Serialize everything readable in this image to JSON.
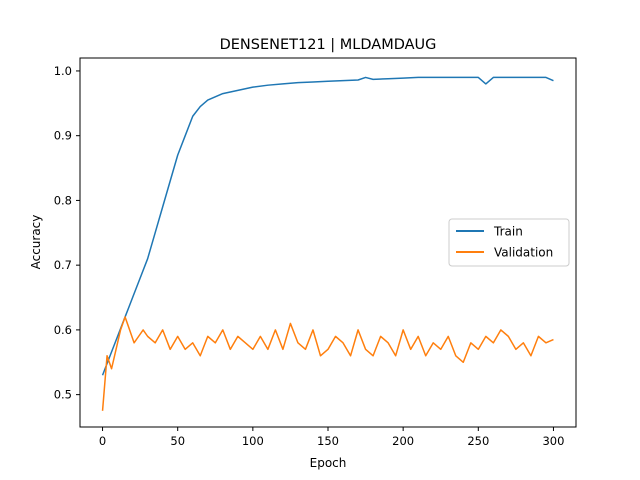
{
  "chart_data": {
    "type": "line",
    "title": "DENSENET121 | MLDAMDAUG",
    "xlabel": "Epoch",
    "ylabel": "Accuracy",
    "xlim": [
      -15,
      315
    ],
    "ylim": [
      0.45,
      1.02
    ],
    "xticks": [
      0,
      50,
      100,
      150,
      200,
      250,
      300
    ],
    "yticks": [
      0.5,
      0.6,
      0.7,
      0.8,
      0.9,
      1.0
    ],
    "ytick_labels": [
      "0.5",
      "0.6",
      "0.7",
      "0.8",
      "0.9",
      "1.0"
    ],
    "grid": false,
    "legend_position": "center-right",
    "series": [
      {
        "name": "Train",
        "color": "#1f77b4",
        "x": [
          0,
          5,
          10,
          15,
          20,
          25,
          30,
          35,
          40,
          45,
          50,
          55,
          60,
          65,
          70,
          75,
          80,
          90,
          100,
          110,
          120,
          130,
          140,
          150,
          160,
          170,
          175,
          180,
          190,
          200,
          210,
          220,
          230,
          240,
          250,
          255,
          260,
          270,
          280,
          290,
          295,
          300
        ],
        "y": [
          0.53,
          0.56,
          0.59,
          0.62,
          0.65,
          0.68,
          0.71,
          0.75,
          0.79,
          0.83,
          0.87,
          0.9,
          0.93,
          0.945,
          0.955,
          0.96,
          0.965,
          0.97,
          0.975,
          0.978,
          0.98,
          0.982,
          0.983,
          0.984,
          0.985,
          0.986,
          0.99,
          0.987,
          0.988,
          0.989,
          0.99,
          0.99,
          0.99,
          0.99,
          0.99,
          0.98,
          0.99,
          0.99,
          0.99,
          0.99,
          0.99,
          0.985
        ]
      },
      {
        "name": "Validation",
        "color": "#ff7f0e",
        "x": [
          0,
          3,
          6,
          9,
          12,
          15,
          18,
          21,
          24,
          27,
          30,
          35,
          40,
          45,
          50,
          55,
          60,
          65,
          70,
          75,
          80,
          85,
          90,
          95,
          100,
          105,
          110,
          115,
          120,
          125,
          130,
          135,
          140,
          145,
          150,
          155,
          160,
          165,
          170,
          175,
          180,
          185,
          190,
          195,
          200,
          205,
          210,
          215,
          220,
          225,
          230,
          235,
          240,
          245,
          250,
          255,
          260,
          265,
          270,
          275,
          280,
          285,
          290,
          295,
          300
        ],
        "y": [
          0.475,
          0.56,
          0.54,
          0.57,
          0.6,
          0.62,
          0.6,
          0.58,
          0.59,
          0.6,
          0.59,
          0.58,
          0.6,
          0.57,
          0.59,
          0.57,
          0.58,
          0.56,
          0.59,
          0.58,
          0.6,
          0.57,
          0.59,
          0.58,
          0.57,
          0.59,
          0.57,
          0.6,
          0.57,
          0.61,
          0.58,
          0.57,
          0.6,
          0.56,
          0.57,
          0.59,
          0.58,
          0.56,
          0.6,
          0.57,
          0.56,
          0.59,
          0.58,
          0.56,
          0.6,
          0.57,
          0.59,
          0.56,
          0.58,
          0.57,
          0.59,
          0.56,
          0.55,
          0.58,
          0.57,
          0.59,
          0.58,
          0.6,
          0.59,
          0.57,
          0.58,
          0.56,
          0.59,
          0.58,
          0.585
        ]
      }
    ]
  }
}
